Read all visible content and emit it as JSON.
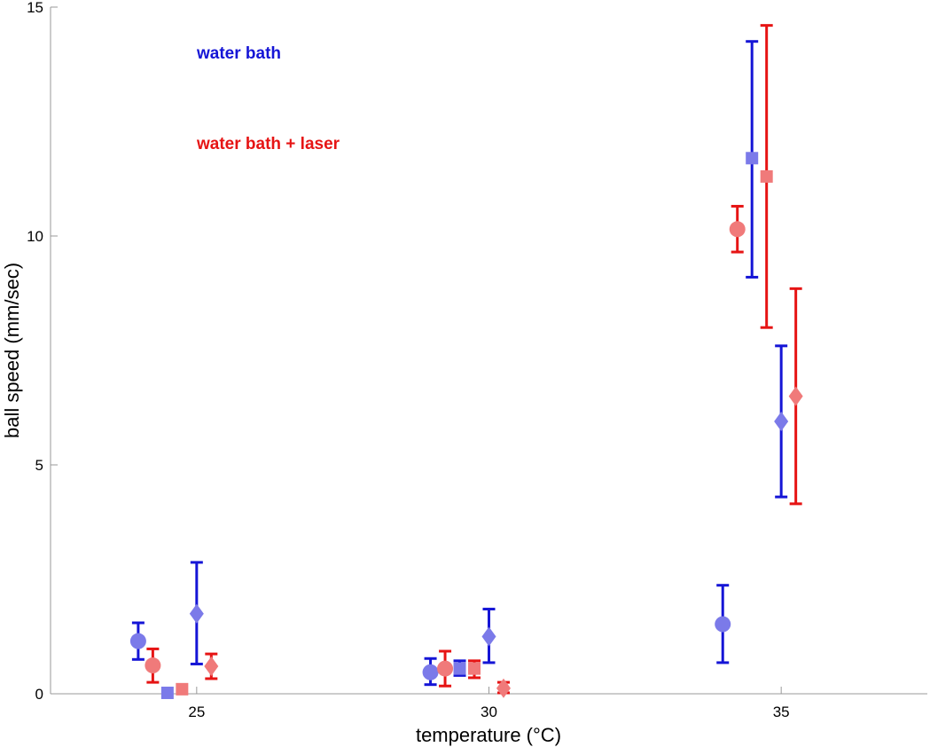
{
  "chart_data": {
    "type": "scatter",
    "title": "",
    "xlabel": "temperature (°C)",
    "ylabel": "ball speed (mm/sec)",
    "xlim": [
      22.5,
      37.5
    ],
    "ylim": [
      0,
      15
    ],
    "xticks": [
      25,
      30,
      35
    ],
    "yticks": [
      0,
      5,
      10,
      15
    ],
    "grid": false,
    "legend": {
      "placement": "top-left",
      "entries": [
        {
          "label": "water bath",
          "color": "#1515d6"
        },
        {
          "label": "water bath + laser",
          "color": "#e61414"
        }
      ]
    },
    "colors": {
      "water_bath_bar": "#1515d6",
      "water_bath_marker": "#7b7ae9",
      "laser_bar": "#e61414",
      "laser_marker": "#f07a7a"
    },
    "series": [
      {
        "condition": "water bath",
        "points": [
          {
            "marker": "circle",
            "x": 24.0,
            "y": 1.15,
            "low": 0.75,
            "high": 1.55
          },
          {
            "marker": "square",
            "x": 24.5,
            "y": 0.02,
            "low": 0.02,
            "high": 0.02
          },
          {
            "marker": "diamond",
            "x": 25.0,
            "y": 1.75,
            "low": 0.65,
            "high": 2.87
          },
          {
            "marker": "circle",
            "x": 29.0,
            "y": 0.47,
            "low": 0.2,
            "high": 0.77
          },
          {
            "marker": "square",
            "x": 29.5,
            "y": 0.55,
            "low": 0.4,
            "high": 0.72
          },
          {
            "marker": "diamond",
            "x": 30.0,
            "y": 1.25,
            "low": 0.68,
            "high": 1.85
          },
          {
            "marker": "circle",
            "x": 34.0,
            "y": 1.52,
            "low": 0.68,
            "high": 2.37
          },
          {
            "marker": "square",
            "x": 34.5,
            "y": 11.7,
            "low": 9.1,
            "high": 14.25
          },
          {
            "marker": "diamond",
            "x": 35.0,
            "y": 5.95,
            "low": 4.3,
            "high": 7.6
          }
        ]
      },
      {
        "condition": "water bath + laser",
        "points": [
          {
            "marker": "circle",
            "x": 24.25,
            "y": 0.62,
            "low": 0.25,
            "high": 0.98
          },
          {
            "marker": "square",
            "x": 24.75,
            "y": 0.1,
            "low": 0.1,
            "high": 0.1
          },
          {
            "marker": "diamond",
            "x": 25.25,
            "y": 0.6,
            "low": 0.33,
            "high": 0.87
          },
          {
            "marker": "circle",
            "x": 29.25,
            "y": 0.55,
            "low": 0.17,
            "high": 0.93
          },
          {
            "marker": "square",
            "x": 29.75,
            "y": 0.55,
            "low": 0.35,
            "high": 0.72
          },
          {
            "marker": "diamond",
            "x": 30.25,
            "y": 0.12,
            "low": 0.02,
            "high": 0.25
          },
          {
            "marker": "circle",
            "x": 34.25,
            "y": 10.15,
            "low": 9.65,
            "high": 10.65
          },
          {
            "marker": "square",
            "x": 34.75,
            "y": 11.3,
            "low": 8.0,
            "high": 14.6
          },
          {
            "marker": "diamond",
            "x": 35.25,
            "y": 6.5,
            "low": 4.15,
            "high": 8.85
          }
        ]
      }
    ]
  }
}
